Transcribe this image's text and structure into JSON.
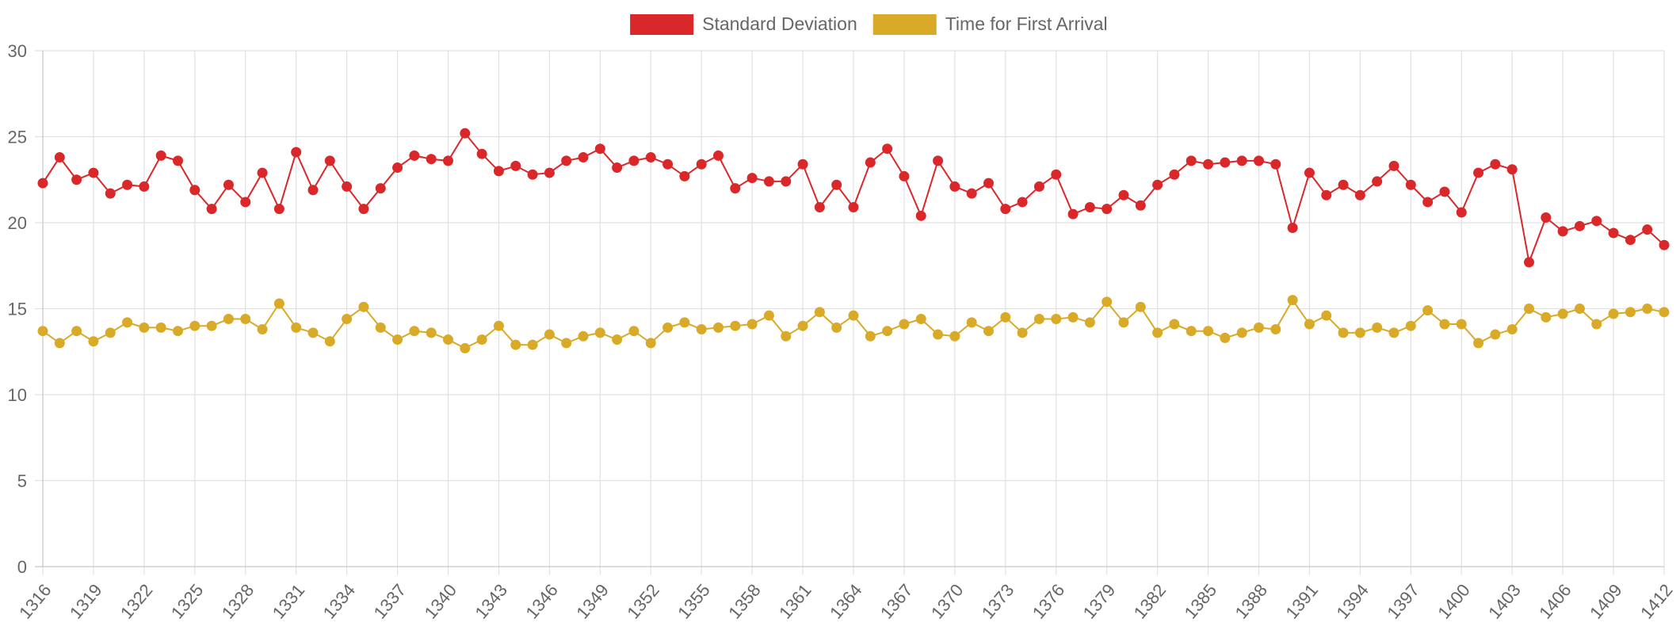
{
  "chart_data": {
    "type": "line",
    "ylim": [
      0,
      30
    ],
    "yticks": [
      0,
      5,
      10,
      15,
      20,
      25,
      30
    ],
    "x": [
      1316,
      1317,
      1318,
      1319,
      1320,
      1321,
      1322,
      1323,
      1324,
      1325,
      1326,
      1327,
      1328,
      1329,
      1330,
      1331,
      1332,
      1333,
      1334,
      1335,
      1336,
      1337,
      1338,
      1339,
      1340,
      1341,
      1342,
      1343,
      1344,
      1345,
      1346,
      1347,
      1348,
      1349,
      1350,
      1351,
      1352,
      1353,
      1354,
      1355,
      1356,
      1357,
      1358,
      1359,
      1360,
      1361,
      1362,
      1363,
      1364,
      1365,
      1366,
      1367,
      1368,
      1369,
      1370,
      1371,
      1372,
      1373,
      1374,
      1375,
      1376,
      1377,
      1378,
      1379,
      1380,
      1381,
      1382,
      1383,
      1384,
      1385,
      1386,
      1387,
      1388,
      1389,
      1390,
      1391,
      1392,
      1393,
      1394,
      1395,
      1396,
      1397,
      1398,
      1399,
      1400,
      1401,
      1402,
      1403,
      1404,
      1405,
      1406,
      1407,
      1408,
      1409,
      1410,
      1411,
      1412
    ],
    "x_tick_labels": [
      "1316",
      "1319",
      "1322",
      "1325",
      "1328",
      "1331",
      "1334",
      "1337",
      "1340",
      "1343",
      "1346",
      "1349",
      "1352",
      "1355",
      "1358",
      "1361",
      "1364",
      "1367",
      "1370",
      "1373",
      "1376",
      "1379",
      "1382",
      "1385",
      "1388",
      "1391",
      "1394",
      "1397",
      "1400",
      "1403",
      "1406",
      "1409",
      "1412"
    ],
    "grid": true,
    "legend_position": "top-center",
    "series": [
      {
        "name": "Standard Deviation",
        "color": "#d9272a",
        "values": [
          22.3,
          23.8,
          22.5,
          22.9,
          21.7,
          22.2,
          22.1,
          23.9,
          23.6,
          21.9,
          20.8,
          22.2,
          21.2,
          22.9,
          20.8,
          24.1,
          21.9,
          23.6,
          22.1,
          20.8,
          22.0,
          23.2,
          23.9,
          23.7,
          23.6,
          25.2,
          24.0,
          23.0,
          23.3,
          22.8,
          22.9,
          23.6,
          23.8,
          24.3,
          23.2,
          23.6,
          23.8,
          23.4,
          22.7,
          23.4,
          23.9,
          22.0,
          22.6,
          22.4,
          22.4,
          23.4,
          20.9,
          22.2,
          20.9,
          23.5,
          24.3,
          22.7,
          20.4,
          23.6,
          22.1,
          21.7,
          22.3,
          20.8,
          21.2,
          22.1,
          22.8,
          20.5,
          20.9,
          20.8,
          21.6,
          21.0,
          22.2,
          22.8,
          23.6,
          23.4,
          23.5,
          23.6,
          23.6,
          23.4,
          19.7,
          22.9,
          21.6,
          22.2,
          21.6,
          22.4,
          23.3,
          22.2,
          21.2,
          21.8,
          20.6,
          22.9,
          23.4,
          23.1,
          17.7,
          20.3,
          19.5,
          19.8,
          20.1,
          19.4,
          19.0,
          19.6,
          18.7
        ]
      },
      {
        "name": "Time for First Arrival",
        "color": "#d9aa27",
        "values": [
          13.7,
          13.0,
          13.7,
          13.1,
          13.6,
          14.2,
          13.9,
          13.9,
          13.7,
          14.0,
          14.0,
          14.4,
          14.4,
          13.8,
          15.3,
          13.9,
          13.6,
          13.1,
          14.4,
          15.1,
          13.9,
          13.2,
          13.7,
          13.6,
          13.2,
          12.7,
          13.2,
          14.0,
          12.9,
          12.9,
          13.5,
          13.0,
          13.4,
          13.6,
          13.2,
          13.7,
          13.0,
          13.9,
          14.2,
          13.8,
          13.9,
          14.0,
          14.1,
          14.6,
          13.4,
          14.0,
          14.8,
          13.9,
          14.6,
          13.4,
          13.7,
          14.1,
          14.4,
          13.5,
          13.4,
          14.2,
          13.7,
          14.5,
          13.6,
          14.4,
          14.4,
          14.5,
          14.2,
          15.4,
          14.2,
          15.1,
          13.6,
          14.1,
          13.7,
          13.7,
          13.3,
          13.6,
          13.9,
          13.8,
          15.5,
          14.1,
          14.6,
          13.6,
          13.6,
          13.9,
          13.6,
          14.0,
          14.9,
          14.1,
          14.1,
          13.0,
          13.5,
          13.8,
          15.0,
          14.5,
          14.7,
          15.0,
          14.1,
          14.7,
          14.8,
          15.0,
          14.8
        ]
      }
    ]
  }
}
